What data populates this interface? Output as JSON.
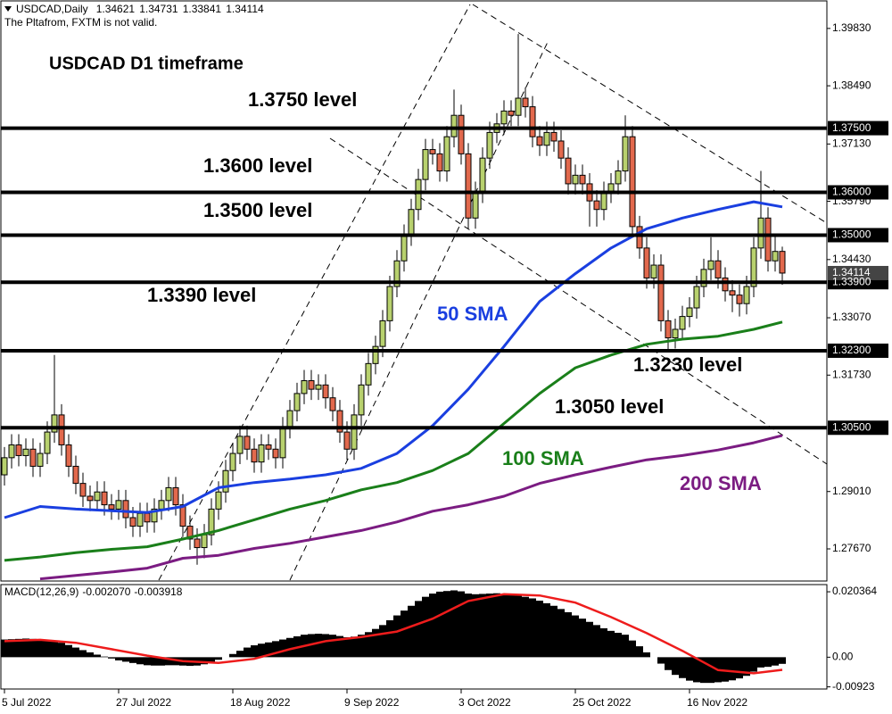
{
  "chart_data": [
    {
      "type": "candlestick",
      "symbol": "USDCAD,Daily",
      "notice": "The Pltafrom, FXTM is not valid.",
      "title": "USDCAD D1 timeframe",
      "categories": [
        "5 Jul 2022",
        null,
        null,
        null,
        null,
        null,
        null,
        null,
        null,
        null,
        null,
        null,
        null,
        null,
        null,
        null,
        "27 Jul 2022",
        null,
        null,
        null,
        null,
        null,
        null,
        null,
        null,
        null,
        null,
        null,
        null,
        null,
        null,
        null,
        "18 Aug 2022",
        null,
        null,
        null,
        null,
        null,
        null,
        null,
        null,
        null,
        null,
        null,
        null,
        null,
        null,
        null,
        "9 Sep 2022",
        null,
        null,
        null,
        null,
        null,
        null,
        null,
        null,
        null,
        null,
        null,
        null,
        null,
        null,
        null,
        "3 Oct 2022",
        null,
        null,
        null,
        null,
        null,
        null,
        null,
        null,
        null,
        null,
        null,
        null,
        null,
        null,
        null,
        "25 Oct 2022",
        null,
        null,
        null,
        null,
        null,
        null,
        null,
        null,
        null,
        null,
        null,
        null,
        null,
        null,
        null,
        "16 Nov 2022",
        null,
        null,
        null,
        null,
        null,
        null,
        null,
        null,
        null,
        null,
        null,
        null,
        null
      ],
      "open": [
        1.294,
        1.298,
        1.301,
        1.2985,
        1.3,
        1.296,
        1.299,
        1.304,
        1.308,
        1.301,
        1.296,
        1.292,
        1.289,
        1.288,
        1.29,
        1.287,
        1.286,
        1.288,
        1.284,
        1.282,
        1.285,
        1.283,
        1.286,
        1.288,
        1.291,
        1.287,
        1.282,
        1.279,
        1.277,
        1.28,
        1.286,
        1.29,
        1.295,
        1.299,
        1.303,
        1.3,
        1.297,
        1.301,
        1.3,
        1.298,
        1.305,
        1.309,
        1.313,
        1.316,
        1.314,
        1.315,
        1.312,
        1.309,
        1.304,
        1.3,
        1.308,
        1.315,
        1.32,
        1.324,
        1.33,
        1.338,
        1.344,
        1.35,
        1.356,
        1.363,
        1.37,
        1.369,
        1.365,
        1.373,
        1.378,
        1.369,
        1.354,
        1.36,
        1.368,
        1.374,
        1.376,
        1.379,
        1.378,
        1.382,
        1.38,
        1.373,
        1.371,
        1.374,
        1.372,
        1.368,
        1.362,
        1.364,
        1.362,
        1.358,
        1.356,
        1.36,
        1.362,
        1.365,
        1.373,
        1.352,
        1.347,
        1.34,
        1.343,
        1.33,
        1.326,
        1.328,
        1.331,
        1.333,
        1.338,
        1.342,
        1.344,
        1.34,
        1.337,
        1.336,
        1.334,
        1.338,
        1.347,
        1.354,
        1.344,
        1.34621
      ],
      "high": [
        1.3005,
        1.3035,
        1.3035,
        1.3025,
        1.3025,
        1.3015,
        1.3065,
        1.322,
        1.3105,
        1.3035,
        1.2985,
        1.2945,
        1.2915,
        1.2925,
        1.2925,
        1.2895,
        1.2905,
        1.2905,
        1.2865,
        1.2875,
        1.2875,
        1.2885,
        1.2905,
        1.2935,
        1.2935,
        1.2895,
        1.2845,
        1.2815,
        1.2825,
        1.2885,
        1.2925,
        1.2975,
        1.3015,
        1.3055,
        1.3055,
        1.3025,
        1.3035,
        1.3035,
        1.3025,
        1.3075,
        1.3115,
        1.3155,
        1.3185,
        1.3185,
        1.3175,
        1.3175,
        1.3145,
        1.3115,
        1.3065,
        1.3105,
        1.3175,
        1.3225,
        1.3265,
        1.3325,
        1.3405,
        1.3465,
        1.3525,
        1.3585,
        1.3655,
        1.3725,
        1.3725,
        1.3715,
        1.3755,
        1.384,
        1.3805,
        1.3715,
        1.3625,
        1.3705,
        1.3765,
        1.3785,
        1.3815,
        1.3815,
        1.397,
        1.3845,
        1.3825,
        1.3755,
        1.3765,
        1.3765,
        1.3745,
        1.3705,
        1.3665,
        1.3665,
        1.3645,
        1.3605,
        1.3625,
        1.3645,
        1.3675,
        1.378,
        1.3755,
        1.3545,
        1.3495,
        1.3455,
        1.3455,
        1.3325,
        1.3305,
        1.3335,
        1.3355,
        1.3405,
        1.3445,
        1.3495,
        1.3465,
        1.3425,
        1.3395,
        1.3385,
        1.3405,
        1.3495,
        1.365,
        1.3565,
        1.35,
        1.34731
      ],
      "low": [
        1.2915,
        1.2955,
        1.296,
        1.296,
        1.2935,
        1.2935,
        1.2965,
        1.3015,
        1.2985,
        1.2935,
        1.2895,
        1.2865,
        1.2855,
        1.2855,
        1.2845,
        1.2835,
        1.2835,
        1.2815,
        1.2795,
        1.2795,
        1.2805,
        1.2805,
        1.2835,
        1.2855,
        1.2845,
        1.2795,
        1.2765,
        1.273,
        1.2745,
        1.2775,
        1.2835,
        1.2875,
        1.2925,
        1.2965,
        1.2975,
        1.2945,
        1.2945,
        1.2975,
        1.2955,
        1.2955,
        1.3025,
        1.3065,
        1.3105,
        1.3115,
        1.3115,
        1.3095,
        1.3065,
        1.3015,
        1.2975,
        1.2975,
        1.3055,
        1.3125,
        1.3175,
        1.3215,
        1.3275,
        1.3355,
        1.3415,
        1.3475,
        1.3535,
        1.3605,
        1.3665,
        1.3625,
        1.3625,
        1.3705,
        1.3665,
        1.3515,
        1.3515,
        1.3575,
        1.3655,
        1.3715,
        1.3735,
        1.3755,
        1.3755,
        1.3775,
        1.3705,
        1.3685,
        1.3685,
        1.3695,
        1.3655,
        1.3595,
        1.3595,
        1.3595,
        1.352,
        1.352,
        1.3535,
        1.3575,
        1.3595,
        1.3625,
        1.3495,
        1.3445,
        1.3375,
        1.3375,
        1.3275,
        1.323,
        1.3235,
        1.3255,
        1.3285,
        1.3305,
        1.3355,
        1.3395,
        1.3375,
        1.3345,
        1.332,
        1.331,
        1.3315,
        1.3355,
        1.3445,
        1.3415,
        1.3415,
        1.33841
      ],
      "close": [
        1.298,
        1.301,
        1.2985,
        1.3,
        1.296,
        1.299,
        1.304,
        1.308,
        1.301,
        1.296,
        1.292,
        1.289,
        1.288,
        1.29,
        1.287,
        1.286,
        1.288,
        1.284,
        1.282,
        1.285,
        1.283,
        1.286,
        1.288,
        1.291,
        1.287,
        1.282,
        1.279,
        1.277,
        1.28,
        1.286,
        1.29,
        1.295,
        1.299,
        1.303,
        1.3,
        1.297,
        1.301,
        1.3,
        1.298,
        1.305,
        1.309,
        1.313,
        1.316,
        1.314,
        1.315,
        1.312,
        1.309,
        1.304,
        1.3,
        1.308,
        1.315,
        1.32,
        1.324,
        1.33,
        1.338,
        1.344,
        1.35,
        1.356,
        1.363,
        1.37,
        1.369,
        1.365,
        1.373,
        1.378,
        1.369,
        1.354,
        1.36,
        1.368,
        1.374,
        1.376,
        1.379,
        1.378,
        1.382,
        1.38,
        1.373,
        1.371,
        1.374,
        1.372,
        1.368,
        1.362,
        1.364,
        1.362,
        1.358,
        1.356,
        1.36,
        1.362,
        1.365,
        1.373,
        1.352,
        1.347,
        1.34,
        1.343,
        1.33,
        1.326,
        1.328,
        1.331,
        1.333,
        1.338,
        1.342,
        1.344,
        1.34,
        1.337,
        1.336,
        1.334,
        1.338,
        1.347,
        1.354,
        1.344,
        1.3462,
        1.34114
      ],
      "up_color": "#b8d16e",
      "down_color": "#e2694d",
      "ylim": [
        1.2694,
        1.4039
      ],
      "yticks": [
        {
          "value": 1.3983,
          "label": "1.39830"
        },
        {
          "value": 1.3849,
          "label": "1.38490"
        },
        {
          "value": 1.3713,
          "label": "1.37130"
        },
        {
          "value": 1.3579,
          "label": "1.35790"
        },
        {
          "value": 1.3443,
          "label": "1.34430"
        },
        {
          "value": 1.3307,
          "label": "1.33070"
        },
        {
          "value": 1.3173,
          "label": "1.31730"
        },
        {
          "value": 1.2901,
          "label": "1.29010"
        },
        {
          "value": 1.2767,
          "label": "1.27670"
        }
      ],
      "levels": [
        {
          "value": 1.375,
          "label": "1.37500",
          "text": "1.3750 level"
        },
        {
          "value": 1.36,
          "label": "1.36000",
          "text": "1.3600 level"
        },
        {
          "value": 1.35,
          "label": "1.35000",
          "text": "1.3500 level"
        },
        {
          "value": 1.339,
          "label": "1.33900",
          "text": "1.3390 level"
        },
        {
          "value": 1.323,
          "label": "1.32300",
          "text": "1.3230 level"
        },
        {
          "value": 1.305,
          "label": "1.30500",
          "text": "1.3050 level"
        }
      ],
      "series": [
        {
          "name": "50 SMA",
          "color": "#1a3fe0",
          "x": [
            0,
            5,
            10,
            15,
            20,
            25,
            30,
            35,
            40,
            45,
            50,
            55,
            60,
            65,
            70,
            75,
            80,
            85,
            90,
            95,
            100,
            105,
            109
          ],
          "values": [
            1.284,
            1.2866,
            1.286,
            1.2856,
            1.2852,
            1.2866,
            1.291,
            1.2922,
            1.293,
            1.294,
            1.2955,
            1.299,
            1.3055,
            1.314,
            1.324,
            1.3345,
            1.341,
            1.347,
            1.3515,
            1.354,
            1.356,
            1.3578,
            1.3566
          ]
        },
        {
          "name": "100 SMA",
          "color": "#1a7f1a",
          "x": [
            0,
            5,
            10,
            15,
            20,
            25,
            30,
            35,
            40,
            45,
            50,
            55,
            60,
            65,
            70,
            75,
            80,
            85,
            90,
            95,
            100,
            105,
            109
          ],
          "values": [
            1.274,
            1.2748,
            1.2758,
            1.2766,
            1.2772,
            1.279,
            1.281,
            1.2835,
            1.286,
            1.288,
            1.2905,
            1.2922,
            1.295,
            1.299,
            1.306,
            1.313,
            1.319,
            1.322,
            1.3245,
            1.3257,
            1.3264,
            1.328,
            1.3297
          ]
        },
        {
          "name": "200 SMA",
          "color": "#7b1c82",
          "x": [
            5,
            10,
            15,
            20,
            25,
            30,
            35,
            40,
            45,
            50,
            55,
            60,
            65,
            70,
            75,
            80,
            85,
            90,
            95,
            100,
            105,
            109
          ],
          "values": [
            1.2697,
            1.2705,
            1.2713,
            1.2722,
            1.2745,
            1.2752,
            1.2768,
            1.278,
            1.2795,
            1.281,
            1.283,
            1.2855,
            1.287,
            1.289,
            1.292,
            1.294,
            1.2958,
            1.2975,
            1.2985,
            1.2998,
            1.3015,
            1.3032
          ]
        }
      ]
    },
    {
      "type": "macd",
      "title": "MACD(12,26,9)",
      "readout": [
        {
          "value": -0.00207,
          "label": "-0.002070"
        },
        {
          "value": -0.003918,
          "label": "-0.003918"
        }
      ],
      "ylim": [
        -0.0099,
        0.0226
      ],
      "yticks": [
        0.020364,
        {
          "value": 0,
          "label": "0.00"
        },
        -0.00923
      ],
      "series": [
        {
          "name": "MACD",
          "color": "#000000",
          "values": [
            0.0055,
            0.0056,
            0.0057,
            0.0058,
            0.0057,
            0.0055,
            0.0052,
            0.005,
            0.0045,
            0.0038,
            0.003,
            0.0022,
            0.0015,
            0.0008,
            0.0002,
            -0.0004,
            -0.001,
            -0.0014,
            -0.0018,
            -0.0022,
            -0.0025,
            -0.0026,
            -0.0026,
            -0.0025,
            -0.0025,
            -0.0026,
            -0.0027,
            -0.0026,
            -0.0022,
            -0.0016,
            -0.0008,
            0.0,
            0.001,
            0.002,
            0.003,
            0.0037,
            0.0042,
            0.0046,
            0.005,
            0.0055,
            0.006,
            0.0065,
            0.007,
            0.0072,
            0.0073,
            0.0072,
            0.007,
            0.0066,
            0.0062,
            0.0064,
            0.007,
            0.0078,
            0.0088,
            0.01,
            0.0115,
            0.013,
            0.0145,
            0.016,
            0.0175,
            0.0188,
            0.0198,
            0.0204,
            0.0206,
            0.0208,
            0.0205,
            0.0198,
            0.0196,
            0.0197,
            0.0198,
            0.0199,
            0.0197,
            0.0195,
            0.0192,
            0.0188,
            0.0183,
            0.0176,
            0.0168,
            0.016,
            0.015,
            0.014,
            0.013,
            0.012,
            0.011,
            0.01,
            0.009,
            0.0082,
            0.0076,
            0.007,
            0.0052,
            0.0034,
            0.0015,
            0.0,
            -0.002,
            -0.004,
            -0.0055,
            -0.0065,
            -0.0073,
            -0.0078,
            -0.008,
            -0.008,
            -0.0078,
            -0.0076,
            -0.0072,
            -0.0066,
            -0.0058,
            -0.0045,
            -0.0032,
            -0.003,
            -0.0026,
            -0.00207
          ]
        },
        {
          "name": "Signal",
          "color": "#ee1c1c",
          "x": [
            0,
            5,
            10,
            15,
            20,
            25,
            30,
            35,
            40,
            45,
            50,
            55,
            60,
            65,
            70,
            75,
            80,
            85,
            90,
            95,
            100,
            105,
            109
          ],
          "values": [
            0.005,
            0.0054,
            0.0045,
            0.0025,
            0.0005,
            -0.0012,
            -0.0018,
            -0.0005,
            0.0025,
            0.005,
            0.0063,
            0.008,
            0.012,
            0.0175,
            0.0196,
            0.0192,
            0.017,
            0.0125,
            0.0075,
            0.002,
            -0.004,
            -0.005,
            -0.003918
          ]
        }
      ]
    }
  ]
}
